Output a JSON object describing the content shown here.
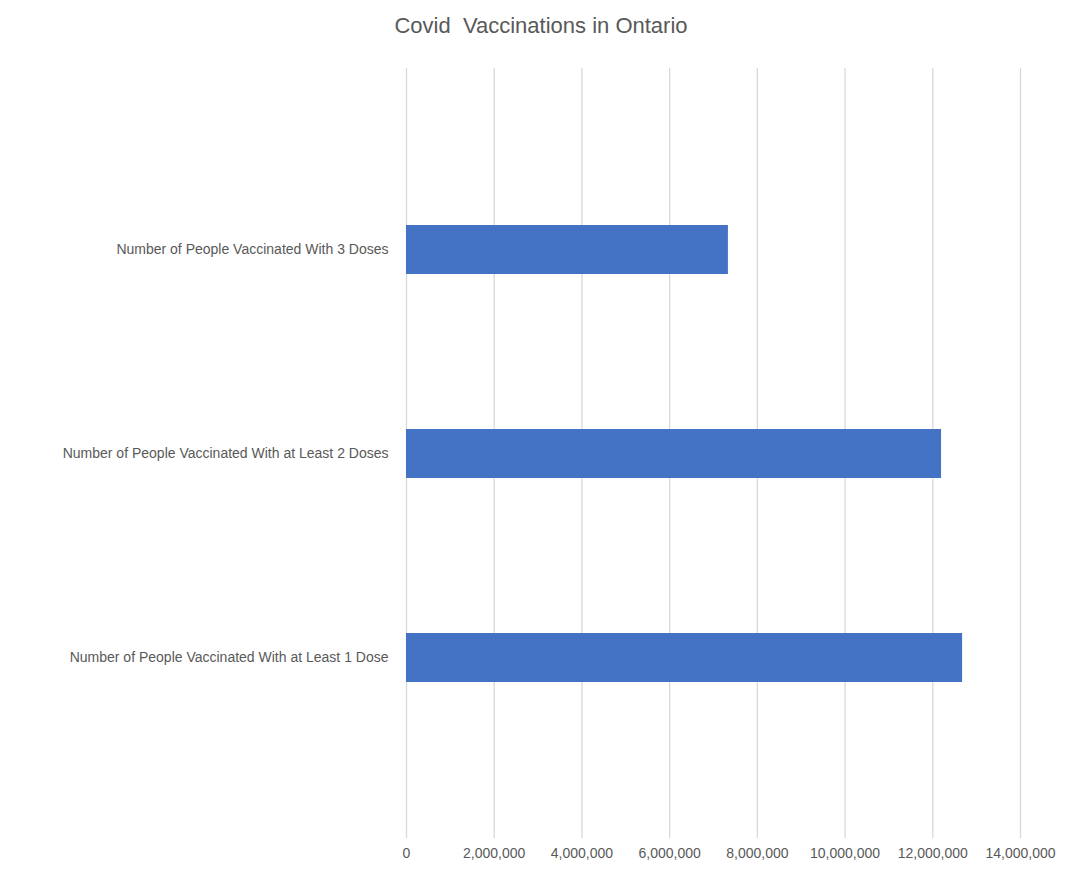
{
  "chart_data": {
    "type": "bar",
    "orientation": "horizontal",
    "title": "Covid  Vaccinations in Ontario",
    "categories": [
      "Number of People Vaccinated With 3 Doses",
      "Number of People Vaccinated With at Least 2 Doses",
      "Number of People Vaccinated With at Least 1 Dose"
    ],
    "values": [
      7340000,
      12200000,
      12680000
    ],
    "color": "#4472c4",
    "xlim": [
      0,
      14000000
    ],
    "xticks": [
      0,
      {
        "value": 2000000,
        "label": "2,000,000"
      },
      {
        "value": 4000000,
        "label": "4,000,000"
      },
      {
        "value": 6000000,
        "label": "6,000,000"
      },
      {
        "value": 8000000,
        "label": "8,000,000"
      },
      {
        "value": 10000000,
        "label": "10,000,000"
      },
      {
        "value": 12000000,
        "label": "12,000,000"
      },
      {
        "value": 14000000,
        "label": "14,000,000"
      }
    ],
    "grid": true
  }
}
